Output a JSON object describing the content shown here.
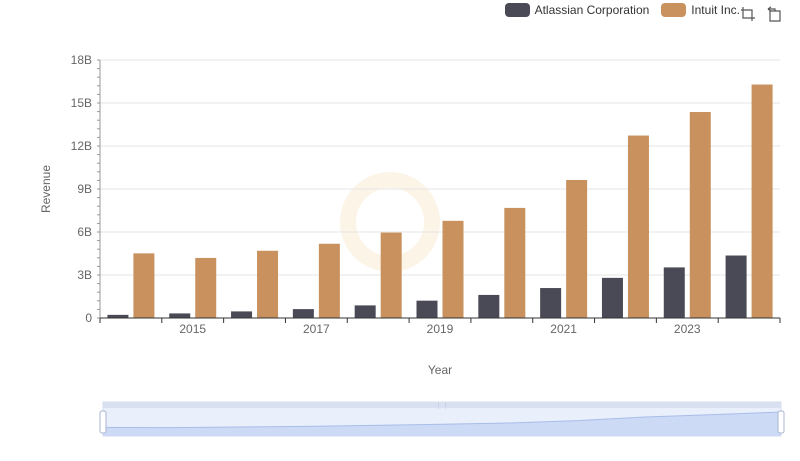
{
  "chart_data": {
    "type": "bar",
    "x": [
      2014,
      2015,
      2016,
      2017,
      2018,
      2019,
      2020,
      2021,
      2022,
      2023,
      2024
    ],
    "x_tick_labels": [
      "2015",
      "2017",
      "2019",
      "2021",
      "2023"
    ],
    "series": [
      {
        "name": "Atlassian Corporation",
        "color": "#4a4a57",
        "values": [
          0.22,
          0.32,
          0.46,
          0.62,
          0.88,
          1.21,
          1.61,
          2.09,
          2.8,
          3.53,
          4.36
        ]
      },
      {
        "name": "Intuit Inc.",
        "color": "#c8915d",
        "values": [
          4.51,
          4.19,
          4.69,
          5.18,
          5.96,
          6.78,
          7.68,
          9.63,
          12.73,
          14.37,
          16.29
        ]
      }
    ],
    "y_ticks": [
      {
        "value": 0,
        "label": "0"
      },
      {
        "value": 3,
        "label": "3B"
      },
      {
        "value": 6,
        "label": "6B"
      },
      {
        "value": 9,
        "label": "9B"
      },
      {
        "value": 12,
        "label": "12B"
      },
      {
        "value": 15,
        "label": "15B"
      },
      {
        "value": 18,
        "label": "18B"
      }
    ],
    "ylim": [
      0,
      18
    ],
    "unit": "billions",
    "xlabel": "Year",
    "ylabel": "Revenue",
    "grid": true,
    "legend_position": "top-right"
  },
  "toolbox": {
    "zoom_icon": "data-zoom-icon",
    "reset_icon": "zoom-reset-icon"
  },
  "slider": {
    "range_start": 0,
    "range_end": 1
  }
}
